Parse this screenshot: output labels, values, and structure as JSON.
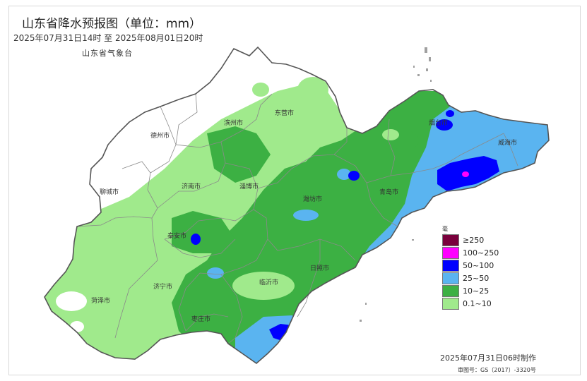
{
  "header": {
    "title": "山东省降水预报图（单位：mm）",
    "period": "2025年07月31日14时  至  2025年08月01日20时",
    "agency": "山东省气象台"
  },
  "footer": {
    "made": "2025年07月31日06时制作",
    "approval": "审图号：GS（2017）-3320号"
  },
  "legend": {
    "title": "毫米",
    "items": [
      {
        "label": "≥250",
        "color": "#7a003c"
      },
      {
        "label": "100~250",
        "color": "#ff00ff"
      },
      {
        "label": "50~100",
        "color": "#0000ff"
      },
      {
        "label": "25~50",
        "color": "#5ab4f0"
      },
      {
        "label": "10~25",
        "color": "#3cb043"
      },
      {
        "label": "0.1~10",
        "color": "#a0ea8c"
      }
    ]
  },
  "cities": {
    "dezhou": "德州市",
    "binzhou": "滨州市",
    "dongying": "东营市",
    "liaocheng": "聊城市",
    "jinan": "济南市",
    "zibo": "淄博市",
    "weifang": "潍坊市",
    "qingdao": "青岛市",
    "yantai": "烟台市",
    "weihai": "威海市",
    "taian": "泰安市",
    "jining": "济宁市",
    "heze": "菏泽市",
    "linyi": "临沂市",
    "rizhao": "日照市",
    "zaozhuang": "枣庄市"
  }
}
